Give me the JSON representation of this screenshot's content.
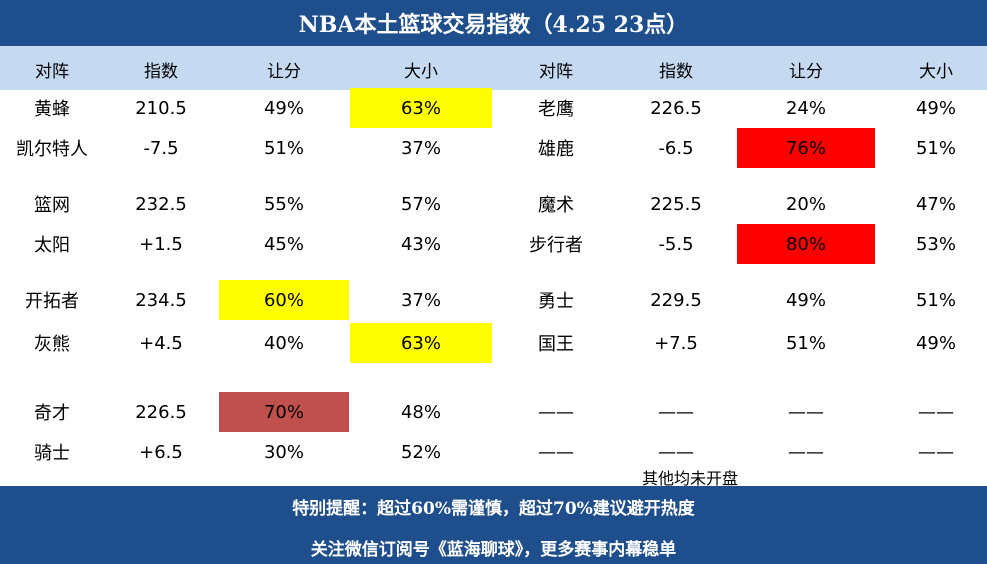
{
  "title": "NBA本土篮球交易指数（4.25 23点）",
  "headers": [
    "对阵",
    "指数",
    "让分",
    "大小",
    "对阵",
    "指数",
    "让分",
    "大小"
  ],
  "rows": [
    [
      "黄蜂",
      "210.5",
      "49%",
      "63%",
      "老鹰",
      "226.5",
      "24%",
      "49%"
    ],
    [
      "凯尔特人",
      "-7.5",
      "51%",
      "37%",
      "雄鹿",
      "-6.5",
      "76%",
      "51%"
    ],
    [
      "篮网",
      "232.5",
      "55%",
      "57%",
      "魔术",
      "225.5",
      "20%",
      "47%"
    ],
    [
      "太阳",
      "+1.5",
      "45%",
      "43%",
      "步行者",
      "-5.5",
      "80%",
      "53%"
    ],
    [
      "开拓者",
      "234.5",
      "60%",
      "37%",
      "勇士",
      "229.5",
      "49%",
      "51%"
    ],
    [
      "灰熊",
      "+4.5",
      "40%",
      "63%",
      "国王",
      "+7.5",
      "51%",
      "49%"
    ],
    [
      "奇才",
      "226.5",
      "70%",
      "48%",
      "——",
      "——",
      "——",
      "——"
    ],
    [
      "骑士",
      "+6.5",
      "30%",
      "52%",
      "——",
      "——",
      "——",
      "——"
    ]
  ],
  "highlight_colors": {
    "yellow": "#ffff00",
    "red": "#ff0000",
    "brown": "#c0504d",
    "title_bg": "#1f4e8c",
    "header_bg": "#c5d9f1"
  },
  "note": "其他均未开盘",
  "footer": {
    "line1": "特别提醒：超过60%需谨慎，超过70%建议避开热度",
    "line2": "关注微信订阅号《蓝海聊球》，更多赛事内幕稳单"
  }
}
